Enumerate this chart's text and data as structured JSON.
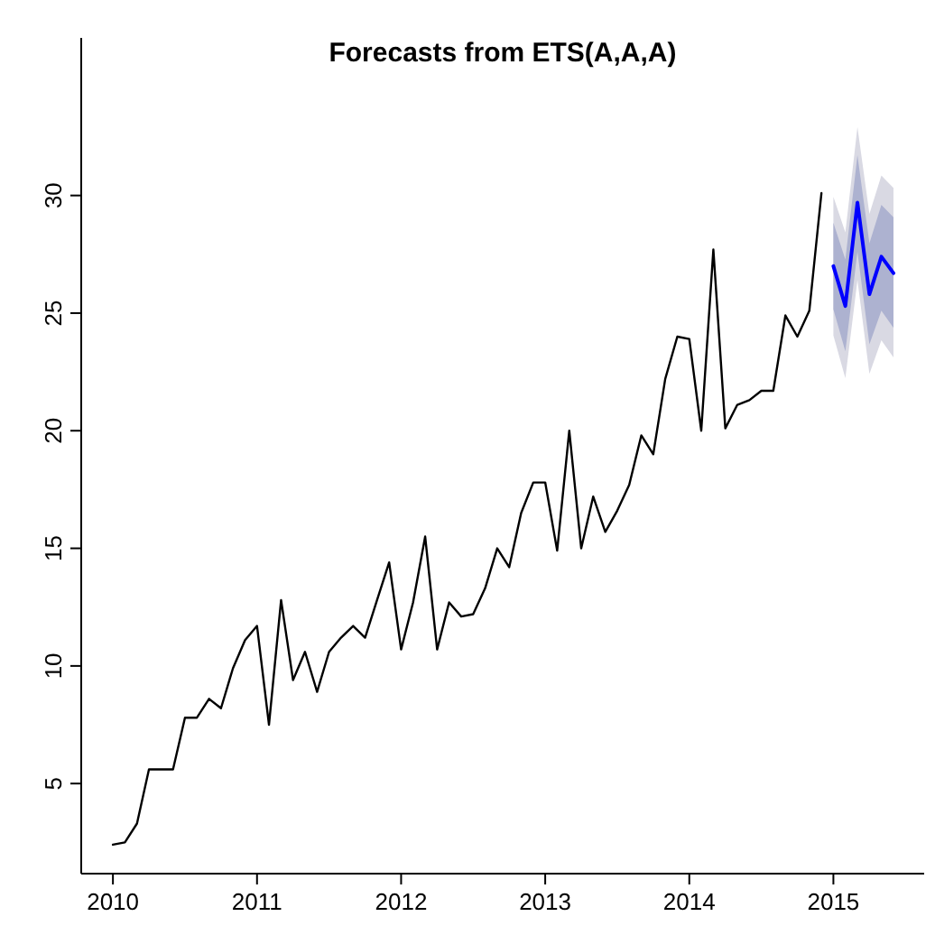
{
  "chart_data": {
    "type": "line",
    "title": "Forecasts from ETS(A,A,A)",
    "xlim": [
      2009.78,
      2015.63
    ],
    "xticks": [
      2010,
      2011,
      2012,
      2013,
      2014,
      2015
    ],
    "ylim": [
      1.17,
      36.7
    ],
    "yticks": [
      5,
      10,
      15,
      20,
      25,
      30
    ],
    "grid": false,
    "line_style": "solid",
    "marker": "none",
    "series": [
      {
        "type": "area",
        "color": "#d9d9e3",
        "x": [
          2015,
          2015.083,
          2015.167,
          2015.25,
          2015.333,
          2015.417
        ],
        "values": [
          null,
          null,
          null,
          null,
          null,
          null
        ],
        "lower": [
          24.05,
          22.23,
          26.41,
          22.42,
          23.85,
          23.12
        ],
        "upper": [
          29.95,
          28.43,
          32.91,
          29.22,
          30.85,
          30.32
        ]
      },
      {
        "type": "area",
        "color": "#adb2d0",
        "x": [
          2015,
          2015.083,
          2015.167,
          2015.25,
          2015.333,
          2015.417
        ],
        "values": [
          null,
          null,
          null,
          null,
          null,
          null
        ],
        "lower": [
          25.16,
          23.38,
          27.61,
          23.67,
          25.1,
          24.37
        ],
        "upper": [
          28.84,
          27.28,
          31.71,
          27.97,
          29.6,
          29.07
        ]
      },
      {
        "color": "#000000",
        "x": [
          2010,
          2010.083,
          2010.167,
          2010.25,
          2010.333,
          2010.417,
          2010.5,
          2010.583,
          2010.667,
          2010.75,
          2010.833,
          2010.917,
          2011,
          2011.083,
          2011.167,
          2011.25,
          2011.333,
          2011.417,
          2011.5,
          2011.583,
          2011.667,
          2011.75,
          2011.833,
          2011.917,
          2012,
          2012.083,
          2012.167,
          2012.25,
          2012.333,
          2012.417,
          2012.5,
          2012.583,
          2012.667,
          2012.75,
          2012.833,
          2012.917,
          2013,
          2013.083,
          2013.167,
          2013.25,
          2013.333,
          2013.417,
          2013.5,
          2013.583,
          2013.667,
          2013.75,
          2013.833,
          2013.917,
          2014,
          2014.083,
          2014.167,
          2014.25,
          2014.333,
          2014.417,
          2014.5,
          2014.583,
          2014.667,
          2014.75,
          2014.833,
          2014.917
        ],
        "values": [
          2.4,
          2.5,
          3.3,
          5.6,
          5.6,
          5.6,
          7.8,
          7.8,
          8.6,
          8.2,
          9.9,
          11.1,
          11.7,
          7.5,
          12.8,
          9.4,
          10.6,
          8.9,
          10.6,
          11.2,
          11.7,
          11.2,
          12.8,
          14.4,
          10.7,
          12.7,
          15.5,
          10.7,
          12.7,
          12.1,
          12.2,
          13.3,
          15.0,
          14.2,
          16.5,
          17.8,
          17.8,
          14.9,
          20.0,
          15.0,
          17.2,
          15.7,
          16.6,
          17.7,
          19.8,
          19.0,
          22.2,
          24.0,
          23.9,
          20.0,
          27.7,
          20.1,
          21.1,
          21.3,
          21.7,
          21.7,
          24.9,
          24.0,
          25.1,
          30.1
        ]
      },
      {
        "color": "#0000ff",
        "x": [
          2015,
          2015.083,
          2015.167,
          2015.25,
          2015.333,
          2015.417
        ],
        "values": [
          27.0,
          25.3,
          29.7,
          25.8,
          27.4,
          26.7
        ]
      }
    ]
  }
}
